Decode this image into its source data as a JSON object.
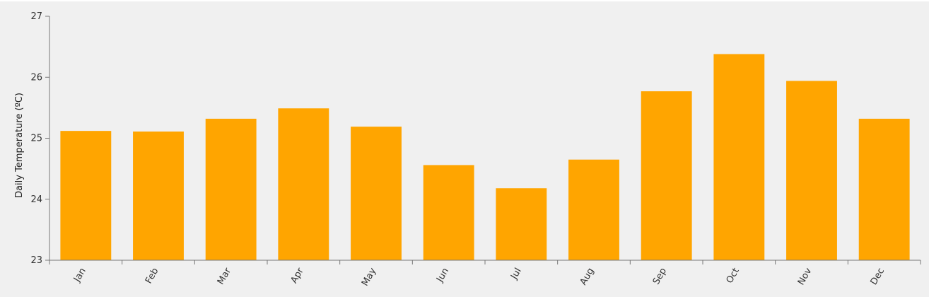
{
  "chart_data": {
    "type": "bar",
    "categories": [
      "Jan",
      "Feb",
      "Mar",
      "Apr",
      "May",
      "Jun",
      "Jul",
      "Aug",
      "Sep",
      "Oct",
      "Nov",
      "Dec"
    ],
    "values": [
      25.12,
      25.11,
      25.32,
      25.49,
      25.19,
      24.56,
      24.18,
      24.65,
      25.77,
      26.38,
      25.94,
      25.32
    ],
    "title": "",
    "xlabel": "",
    "ylabel": "Daily Temperature (ºC)",
    "ylim": [
      23,
      27
    ],
    "yticks": [
      "23",
      "24",
      "25",
      "26",
      "27"
    ],
    "bar_color": "#ffa500",
    "grid": false,
    "legend": "none"
  }
}
